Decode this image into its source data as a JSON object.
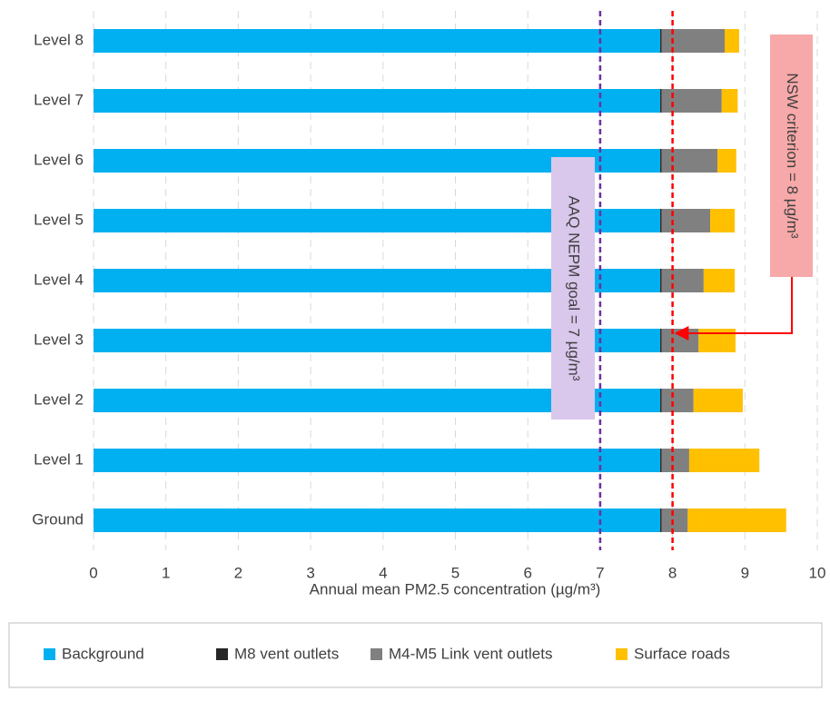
{
  "chart_data": {
    "type": "stacked-barh",
    "categories": [
      "Level 8",
      "Level 7",
      "Level 6",
      "Level 5",
      "Level 4",
      "Level 3",
      "Level 2",
      "Level 1",
      "Ground"
    ],
    "series": [
      {
        "name": "Background",
        "color": "#00b0f0",
        "values": [
          7.83,
          7.83,
          7.83,
          7.83,
          7.83,
          7.83,
          7.83,
          7.83,
          7.83
        ]
      },
      {
        "name": "M8 vent outlets",
        "color": "#262626",
        "values": [
          0.02,
          0.02,
          0.02,
          0.02,
          0.02,
          0.02,
          0.02,
          0.02,
          0.02
        ]
      },
      {
        "name": "M4-M5 Link vent outlets",
        "color": "#808080",
        "values": [
          0.87,
          0.83,
          0.77,
          0.67,
          0.58,
          0.51,
          0.44,
          0.38,
          0.36
        ]
      },
      {
        "name": "Surface roads",
        "color": "#ffc000",
        "values": [
          0.2,
          0.22,
          0.26,
          0.34,
          0.43,
          0.51,
          0.68,
          0.97,
          1.36
        ]
      }
    ],
    "x_label": "Annual mean PM2.5 concentration (µg/m³)",
    "xlim": [
      0,
      10
    ],
    "xticks": [
      0,
      1,
      2,
      3,
      4,
      5,
      6,
      7,
      8,
      9,
      10
    ],
    "grid": true,
    "reference_lines": [
      {
        "value": 7,
        "label": "AAQ NEPM goal = 7 µg/m³",
        "color": "#7030a0",
        "box_color": "#d9c7ec"
      },
      {
        "value": 8,
        "label": "NSW criterion = 8 µg/m³",
        "color": "#ff0000",
        "box_color": "#f7a8a8"
      }
    ],
    "legend": "bottom"
  }
}
